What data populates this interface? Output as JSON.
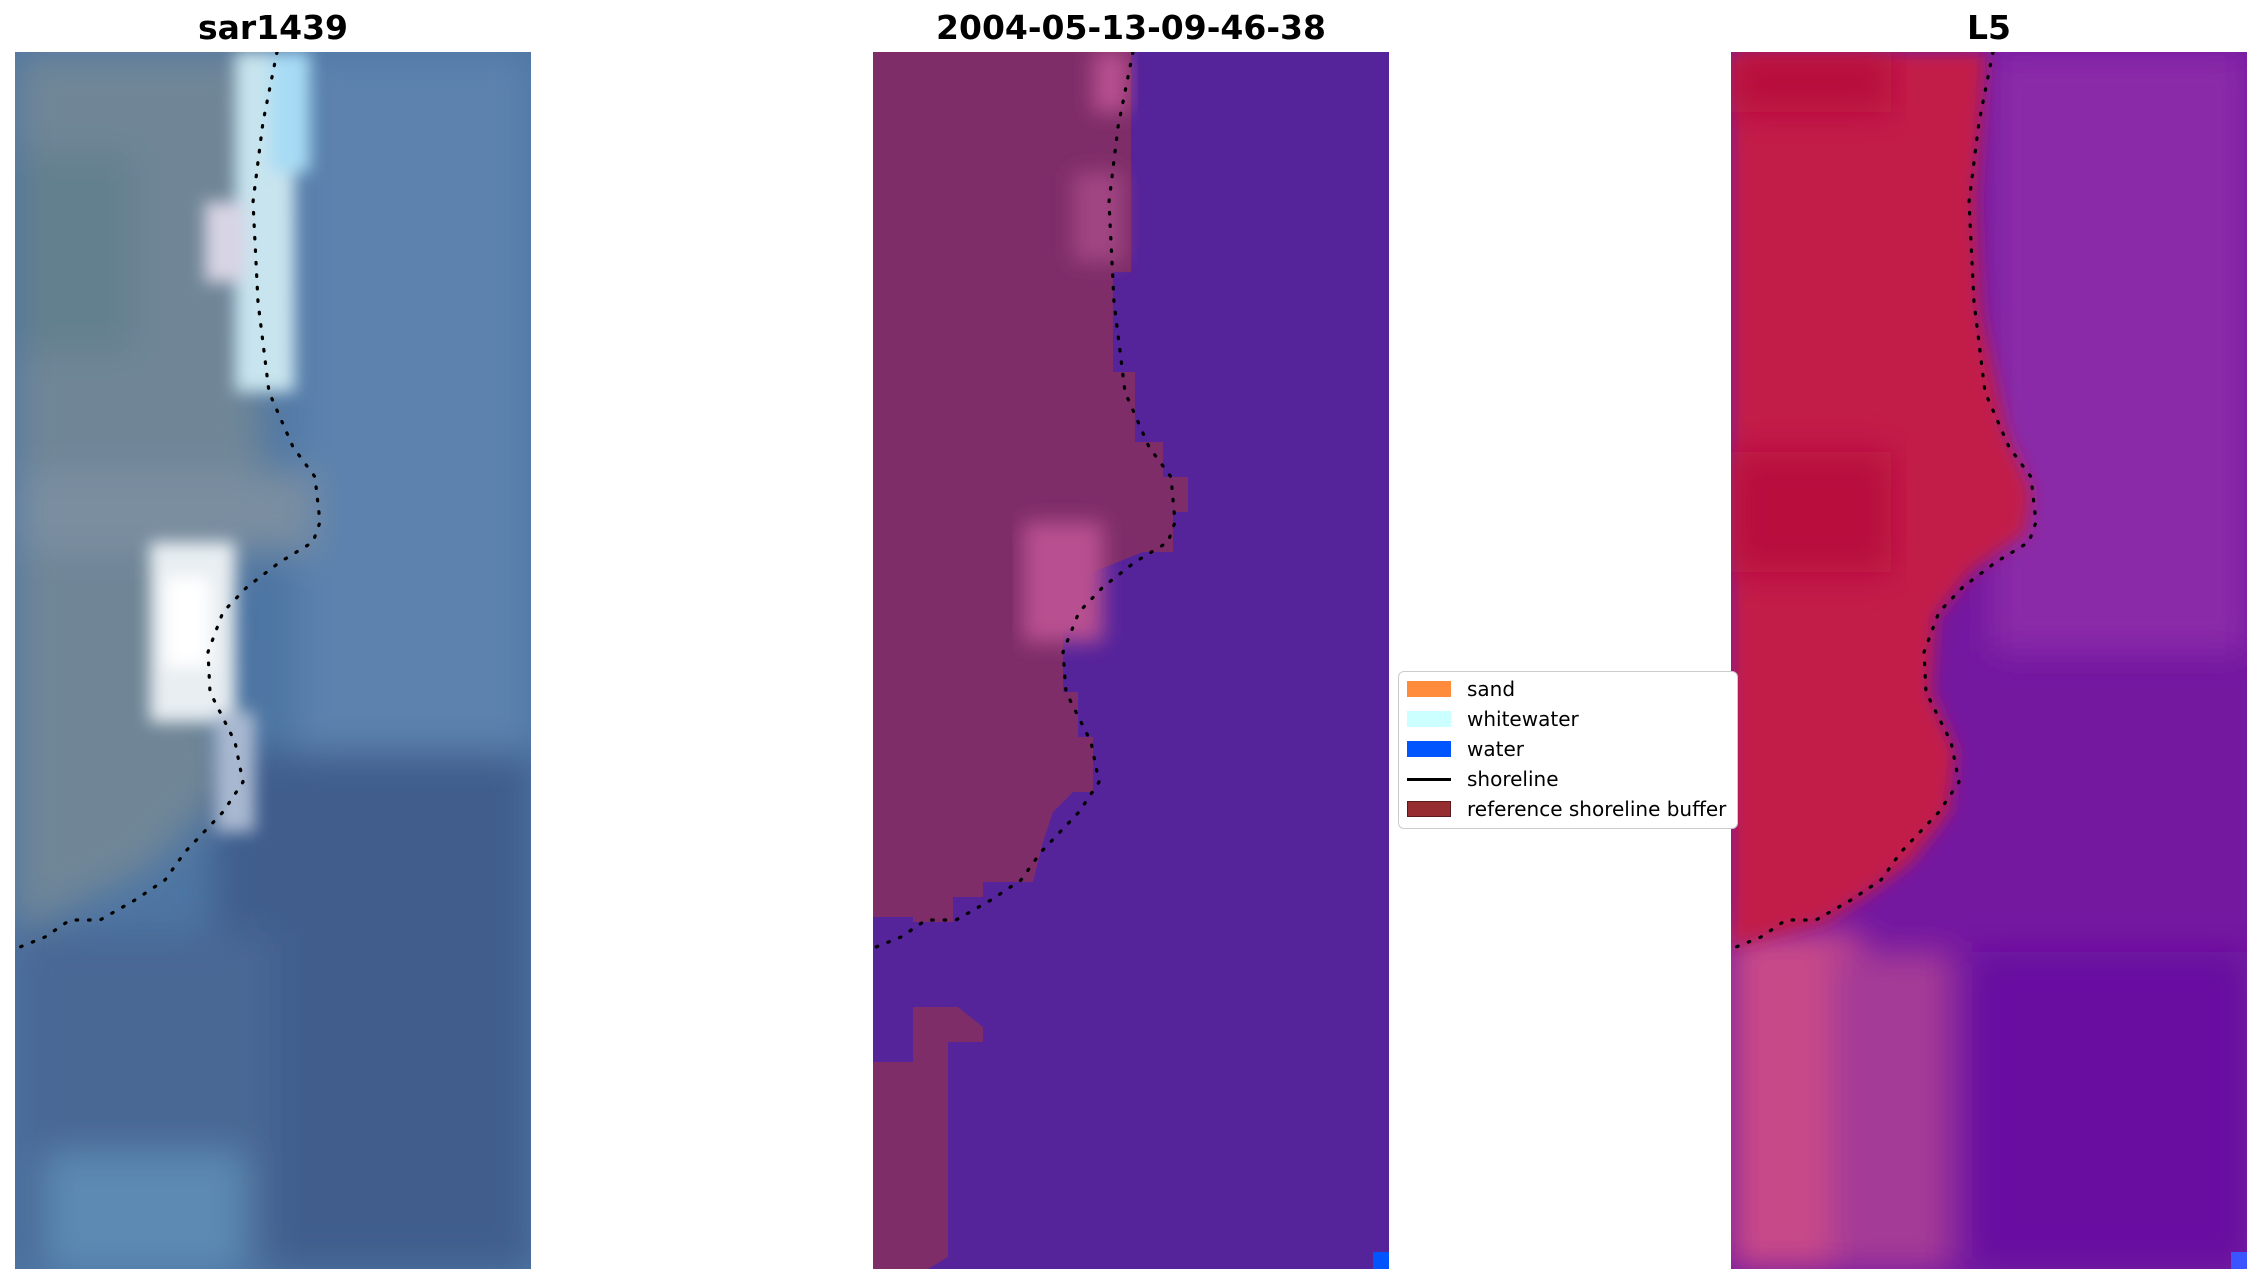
{
  "panels": [
    {
      "title": "sar1439"
    },
    {
      "title": "2004-05-13-09-46-38"
    },
    {
      "title": "L5"
    }
  ],
  "legend": {
    "items": [
      {
        "label": "sand",
        "type": "patch",
        "color": "#ff8c3c"
      },
      {
        "label": "whitewater",
        "type": "patch",
        "color": "#ccffff"
      },
      {
        "label": "water",
        "type": "patch",
        "color": "#0055ff"
      },
      {
        "label": "shoreline",
        "type": "line",
        "color": "#000000"
      },
      {
        "label": "reference shoreline buffer",
        "type": "patch",
        "color": "#962d30"
      }
    ]
  },
  "colors": {
    "rgb_water": "#4d75a3",
    "rgb_land": "#6f8597",
    "class_water": "#55239a",
    "class_land": "#7e2d68",
    "class_highlight": "#b85090",
    "index_land": "#c21d4a",
    "index_water": "#7418a0",
    "index_land_light": "#c84a88",
    "shoreline": "#000000"
  }
}
